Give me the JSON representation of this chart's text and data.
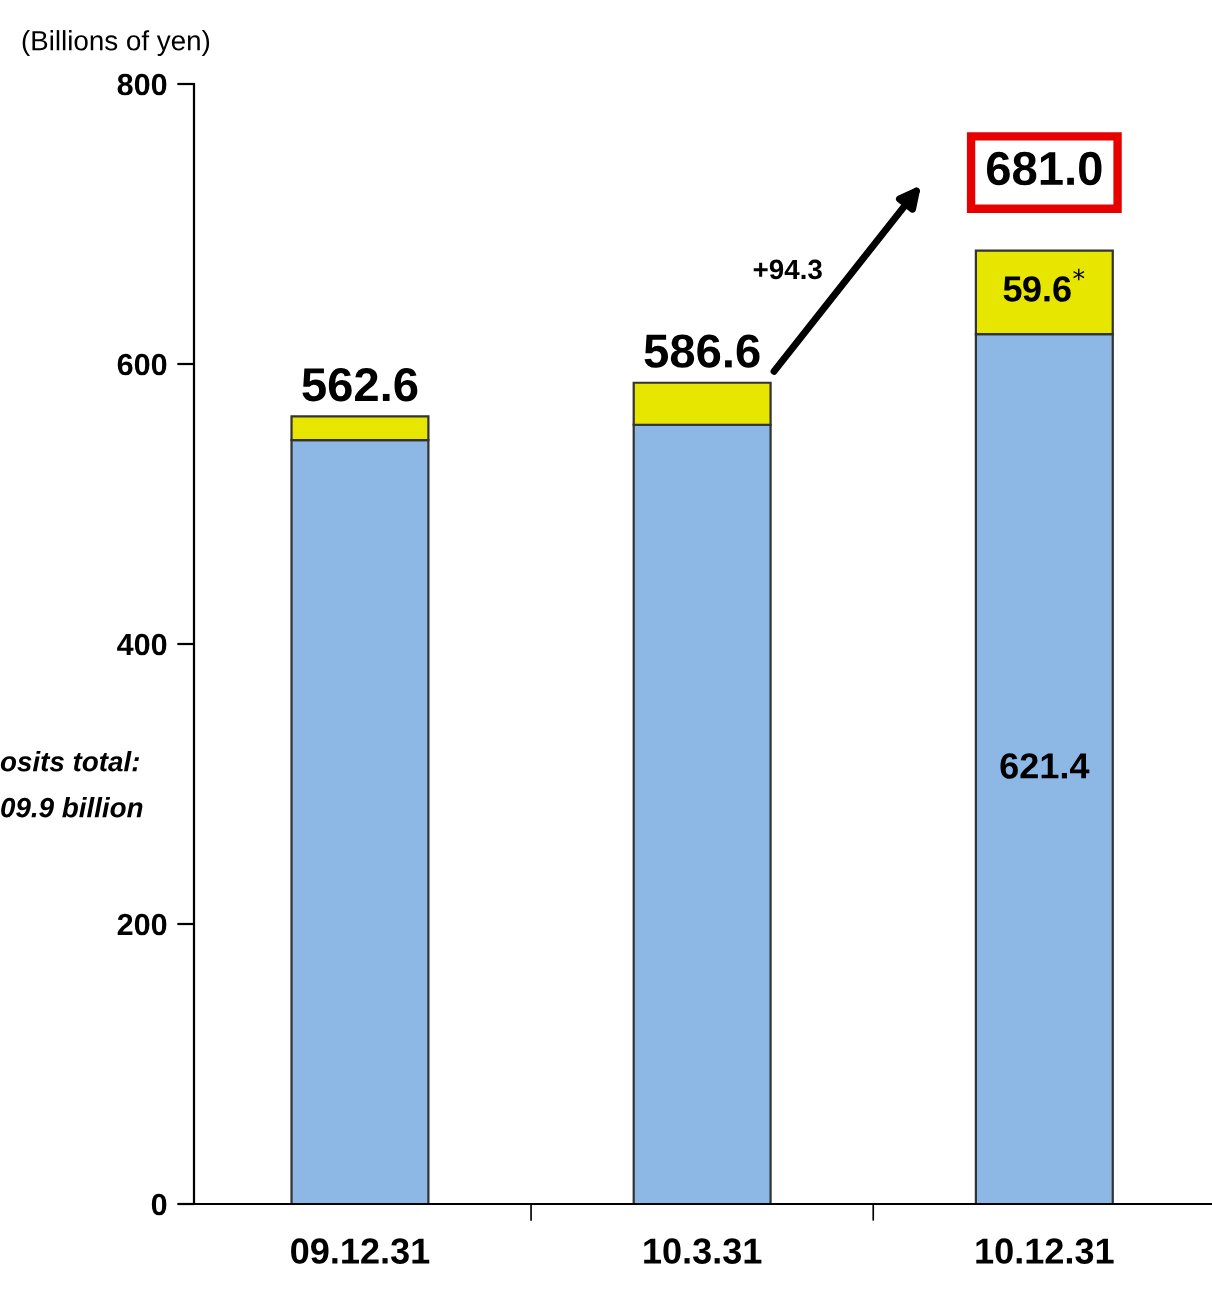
{
  "chart_data": {
    "type": "bar",
    "stacked": true,
    "ylabel": "(Billions of yen)",
    "categories": [
      "09.12.31",
      "10.3.31",
      "10.12.31"
    ],
    "series": [
      {
        "color": "#8db8e6",
        "values": [
          545.6,
          556.6,
          621.4
        ],
        "value_labels": [
          null,
          null,
          "621.4"
        ]
      },
      {
        "color": "#e6e600",
        "values": [
          17,
          30,
          59.6
        ],
        "value_labels": [
          null,
          null,
          "59.6$^{*}$"
        ]
      }
    ],
    "totals": [
      "562.6",
      "586.6",
      "681.0"
    ],
    "ylim": [
      0,
      800
    ],
    "yticks": [
      0,
      200,
      400,
      600,
      800
    ],
    "grid": false,
    "legend": false,
    "annotations": [
      "+94.3",
      "osits total:",
      "09.9 billion"
    ]
  }
}
